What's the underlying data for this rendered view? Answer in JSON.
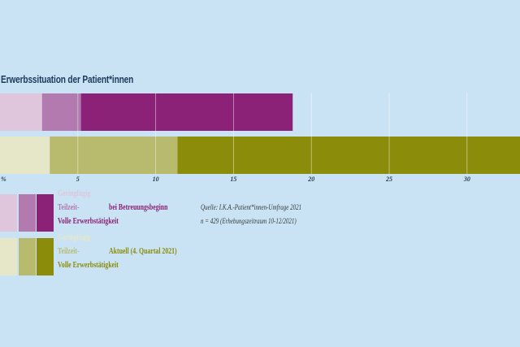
{
  "chart_data": {
    "type": "bar",
    "orientation": "horizontal",
    "stacked": true,
    "title": "Erwerbssituation der Patient*innen",
    "x_unit": "%",
    "xlim": [
      0,
      33.4
    ],
    "x_ticks": [
      {
        "value": 0,
        "label": "%"
      },
      {
        "value": 5,
        "label": "5"
      },
      {
        "value": 10,
        "label": "10"
      },
      {
        "value": 15,
        "label": "15"
      },
      {
        "value": 20,
        "label": "20"
      },
      {
        "value": 25,
        "label": "25"
      },
      {
        "value": 30,
        "label": "30"
      }
    ],
    "grid": true,
    "categories": [
      "bei Betreuungsbeginn",
      "Aktuell (4. Quartal 2021)"
    ],
    "series": [
      {
        "name": "Geringfügig",
        "values": [
          2.7,
          3.2
        ],
        "colors": [
          "#dfc6dd",
          "#e6e6c8"
        ]
      },
      {
        "name": "Teilzeit-",
        "values": [
          2.5,
          8.2
        ],
        "colors": [
          "#b27aaf",
          "#b8bb6d"
        ]
      },
      {
        "name": "Volle Erwerbstätigkeit",
        "values": [
          13.6,
          22.0
        ],
        "colors": [
          "#8c2277",
          "#8b8c0a"
        ]
      }
    ]
  },
  "legend": {
    "groups": [
      {
        "key": "baseline",
        "label": "bei Betreuungsbeginn",
        "color": "#8c2277",
        "swatches": [
          "#dfc6dd",
          "#b27aaf",
          "#8c2277"
        ]
      },
      {
        "key": "current",
        "label": "Aktuell (4. Quartal 2021)",
        "color": "#8b8c0a",
        "swatches": [
          "#e6e6c8",
          "#b8bb6d",
          "#8b8c0a"
        ]
      }
    ],
    "items": [
      "Geringfügig",
      "Teilzeit-",
      "Volle Erwerbstätigkeit"
    ]
  },
  "source": {
    "line1": "Quelle: I.K.A.-Patient*innen-Umfrage 2021",
    "line2": "n = 429 (Erhebungszeitraum 10-12/2021)"
  }
}
